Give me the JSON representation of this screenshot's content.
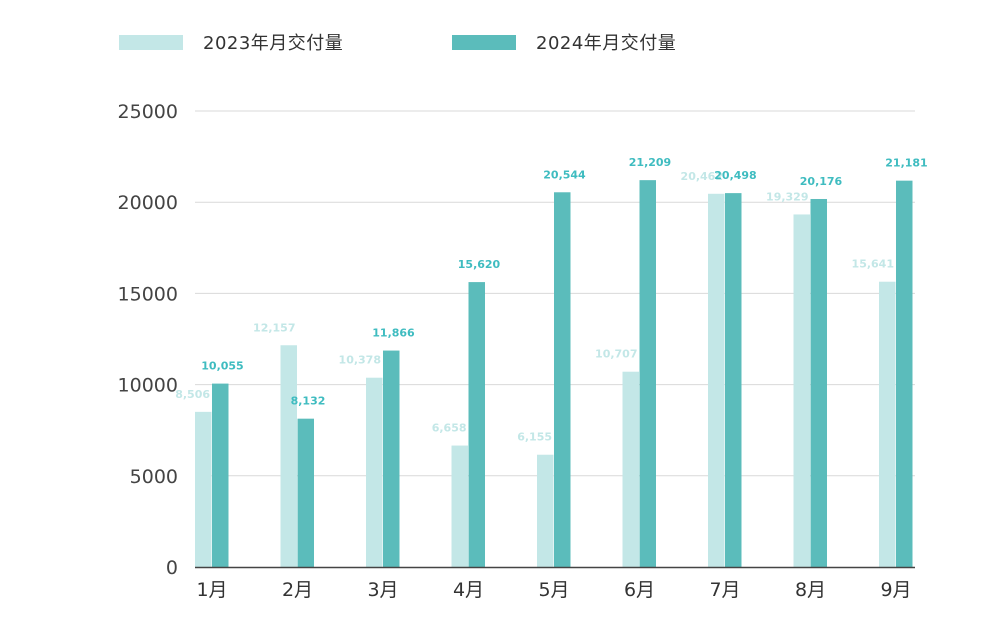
{
  "chart_data": {
    "type": "bar",
    "categories": [
      "1月",
      "2月",
      "3月",
      "4月",
      "5月",
      "6月",
      "7月",
      "8月",
      "9月"
    ],
    "series": [
      {
        "name": "2023年月交付量",
        "values": [
          8506,
          12157,
          10378,
          6658,
          6155,
          10707,
          20462,
          19329,
          15641
        ],
        "labels": [
          "8,506",
          "12,157",
          "10,378",
          "6,658",
          "6,155",
          "10,707",
          "20,462",
          "19,329",
          "15,641"
        ],
        "color": "#c3e7e7",
        "label_color": "#c3e7e7"
      },
      {
        "name": "2024年月交付量",
        "values": [
          10055,
          8132,
          11866,
          15620,
          20544,
          21209,
          20498,
          20176,
          21181
        ],
        "labels": [
          "10,055",
          "8,132",
          "11,866",
          "15,620",
          "20,544",
          "21,209",
          "20,498",
          "20,176",
          "21,181"
        ],
        "color": "#5bbcbb",
        "label_color": "#3fbcc0"
      }
    ],
    "yticks": [
      "0",
      "5000",
      "10000",
      "15000",
      "20000",
      "25000"
    ],
    "ylim": [
      0,
      25000
    ],
    "grid": true,
    "legend_position": "top-left"
  }
}
